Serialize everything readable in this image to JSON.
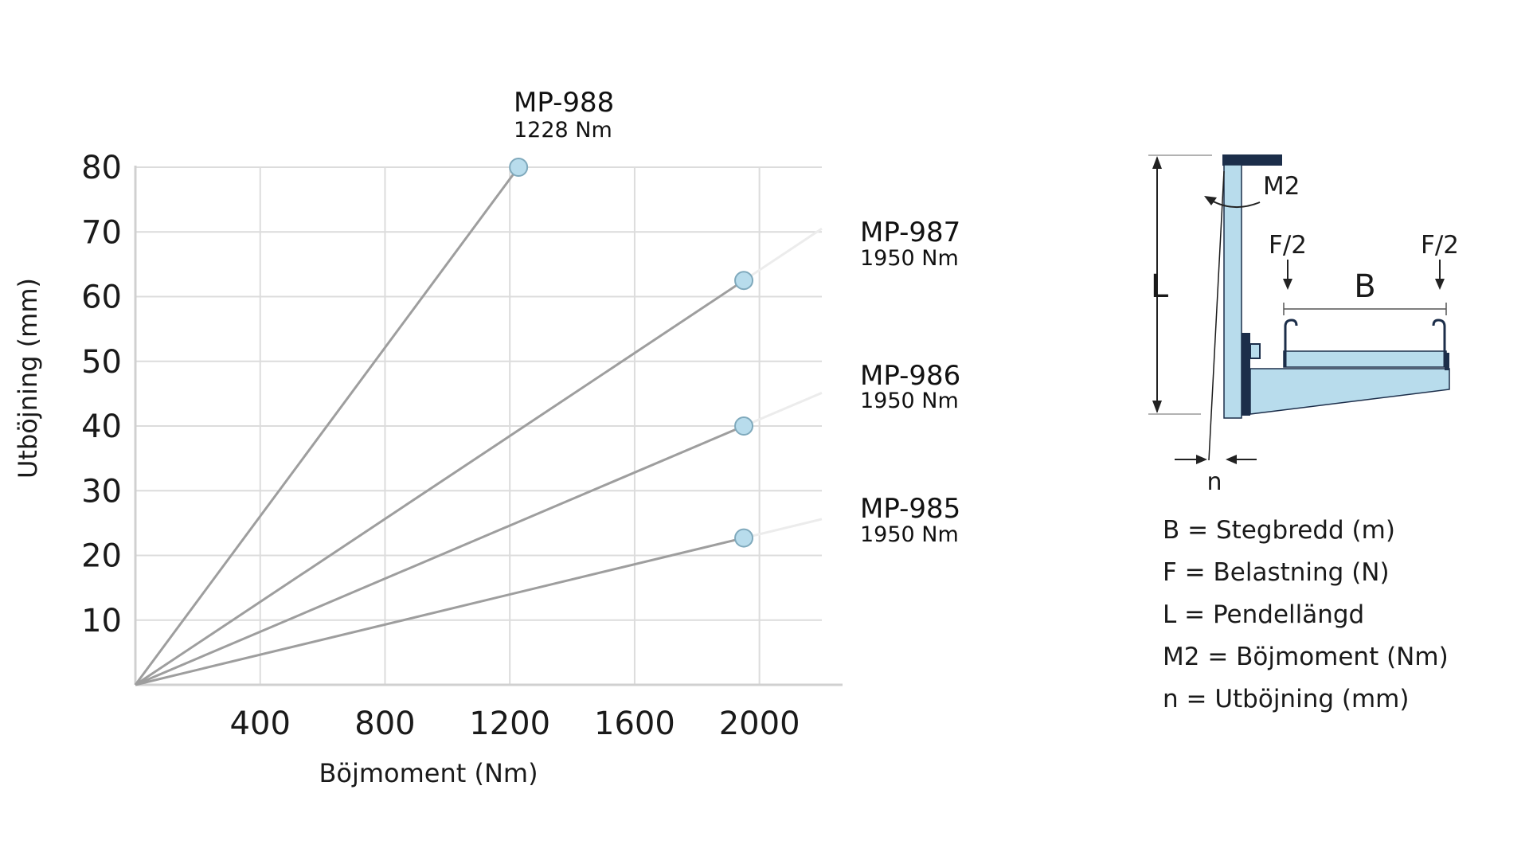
{
  "chart_data": {
    "type": "line",
    "title": "",
    "xlabel": "Böjmoment (Nm)",
    "ylabel": "Utböjning (mm)",
    "xlim": [
      0,
      2200
    ],
    "ylim": [
      0,
      80
    ],
    "x_ticks": [
      "400",
      "800",
      "1200",
      "1600",
      "2000"
    ],
    "y_ticks": [
      "10",
      "20",
      "30",
      "40",
      "50",
      "60",
      "70",
      "80"
    ],
    "grid": true,
    "series": [
      {
        "name": "MP-988",
        "max_label": "1228 Nm",
        "x_end": 1228,
        "y_end": 80,
        "extended": false
      },
      {
        "name": "MP-987",
        "max_label": "1950 Nm",
        "x_end": 1950,
        "y_end": 62.5,
        "extended": true
      },
      {
        "name": "MP-986",
        "max_label": "1950 Nm",
        "x_end": 1950,
        "y_end": 40,
        "extended": true
      },
      {
        "name": "MP-985",
        "max_label": "1950 Nm",
        "x_end": 1950,
        "y_end": 22.7,
        "extended": true
      }
    ]
  },
  "diagram": {
    "labels": {
      "L": "L",
      "M2": "M2",
      "F_left": "F/2",
      "F_right": "F/2",
      "B": "B",
      "n": "n"
    },
    "legend": [
      "B = Stegbredd (m)",
      "F = Belastning (N)",
      "L = Pendellängd",
      "M2 = Böjmoment (Nm)",
      "n = Utböjning (mm)"
    ]
  },
  "colors": {
    "line": "#9e9e9e",
    "line_extension": "#ececec",
    "grid": "#dcdcdc",
    "axis": "#d0d0d0",
    "marker_fill": "#b8dcec",
    "marker_stroke": "#7fa9bc",
    "part_fill": "#b8dcec",
    "part_dark": "#1c2e4a"
  }
}
